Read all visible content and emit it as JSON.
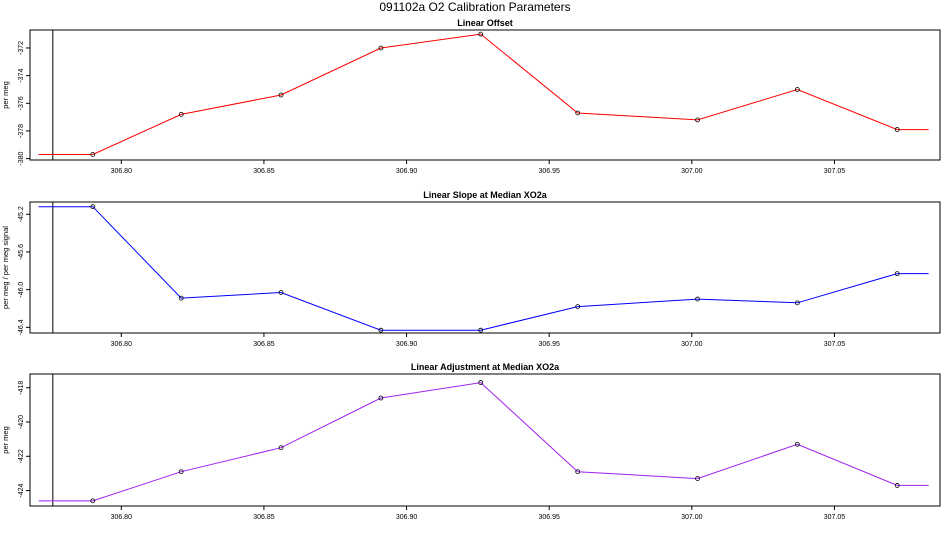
{
  "title": "091102a   O2 Calibration Parameters",
  "chart_data": [
    {
      "type": "line",
      "title": "Linear Offset",
      "ylabel": "per meg",
      "color": "#ff0000",
      "x": [
        306.771,
        306.79,
        306.821,
        306.856,
        306.891,
        306.926,
        306.96,
        307.002,
        307.037,
        307.072,
        307.083
      ],
      "y": [
        -379.7,
        -379.7,
        -376.8,
        -375.4,
        -372.0,
        -371.0,
        -376.7,
        -377.2,
        -375.0,
        -377.9,
        -377.9
      ],
      "points": [
        false,
        true,
        true,
        true,
        true,
        true,
        true,
        true,
        true,
        true,
        false
      ],
      "xlim": [
        306.768,
        307.087
      ],
      "ylim": [
        -380.1,
        -370.7
      ],
      "xticks": [
        "306.80",
        "306.85",
        "306.90",
        "306.95",
        "307.00",
        "307.05"
      ],
      "yticks": [
        "-380",
        "-378",
        "-376",
        "-374",
        "-372"
      ],
      "vline_x": 306.776
    },
    {
      "type": "line",
      "title": "Linear Slope at Median XO2a",
      "ylabel": "per meg / per meg signal",
      "color": "#0000ff",
      "x": [
        306.771,
        306.79,
        306.821,
        306.856,
        306.891,
        306.926,
        306.96,
        307.002,
        307.037,
        307.072,
        307.083
      ],
      "y": [
        -45.12,
        -45.12,
        -46.09,
        -46.03,
        -46.43,
        -46.43,
        -46.18,
        -46.1,
        -46.14,
        -45.83,
        -45.83
      ],
      "points": [
        false,
        true,
        true,
        true,
        true,
        true,
        true,
        true,
        true,
        true,
        false
      ],
      "xlim": [
        306.768,
        307.087
      ],
      "ylim": [
        -46.46,
        -45.07
      ],
      "xticks": [
        "306.80",
        "306.85",
        "306.90",
        "306.95",
        "307.00",
        "307.05"
      ],
      "yticks": [
        "-46.4",
        "-46.0",
        "-45.6",
        "-45.2"
      ],
      "vline_x": 306.776
    },
    {
      "type": "line",
      "title": "Linear Adjustment at Median XO2a",
      "ylabel": "per meg",
      "color": "#a020f0",
      "x": [
        306.771,
        306.79,
        306.821,
        306.856,
        306.891,
        306.926,
        306.96,
        307.002,
        307.037,
        307.072,
        307.083
      ],
      "y": [
        -424.6,
        -424.6,
        -422.9,
        -421.5,
        -418.6,
        -417.7,
        -422.9,
        -423.3,
        -421.3,
        -423.7,
        -423.7
      ],
      "points": [
        false,
        true,
        true,
        true,
        true,
        true,
        true,
        true,
        true,
        true,
        false
      ],
      "xlim": [
        306.768,
        307.087
      ],
      "ylim": [
        -424.9,
        -417.2
      ],
      "xticks": [
        "306.80",
        "306.85",
        "306.90",
        "306.95",
        "307.00",
        "307.05"
      ],
      "yticks": [
        "-424",
        "-422",
        "-420",
        "-418"
      ],
      "vline_x": 306.776
    }
  ]
}
